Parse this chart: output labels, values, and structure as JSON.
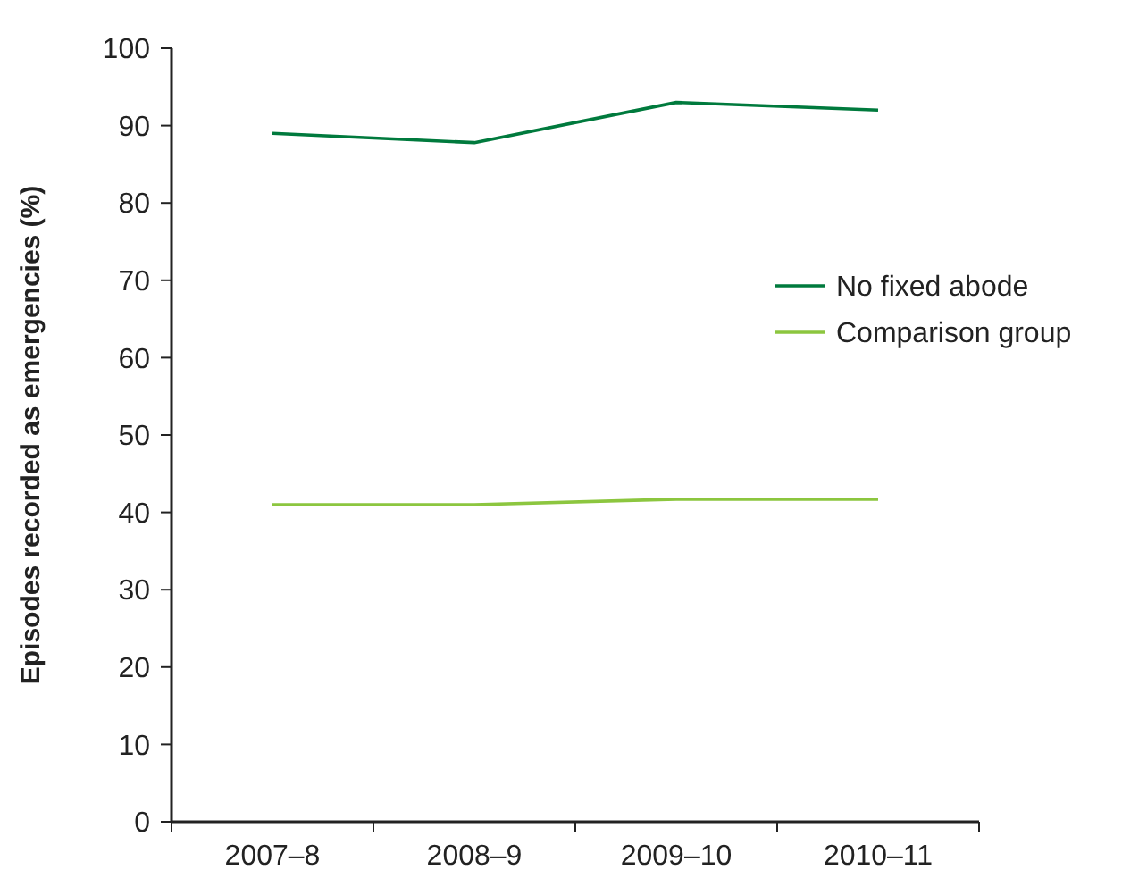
{
  "chart_data": {
    "type": "line",
    "ylabel": "Episodes recorded as emergencies (%)",
    "categories": [
      "2007–8",
      "2008–9",
      "2009–10",
      "2010–11"
    ],
    "series": [
      {
        "name": "No fixed abode",
        "color": "#007a3d",
        "values": [
          89,
          87.8,
          93,
          92
        ]
      },
      {
        "name": "Comparison group",
        "color": "#8cc63f",
        "values": [
          41,
          41,
          41.7,
          41.7
        ]
      }
    ],
    "ylim": [
      0,
      100
    ],
    "yticks": [
      0,
      10,
      20,
      30,
      40,
      50,
      60,
      70,
      80,
      90,
      100
    ],
    "legend": "right",
    "grid": false,
    "marker": "none",
    "line_style": "solid"
  }
}
